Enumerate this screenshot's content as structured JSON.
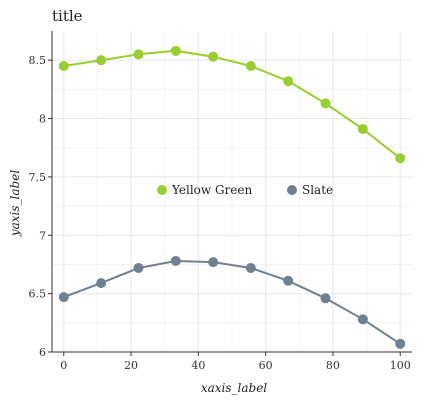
{
  "chart_data": {
    "type": "scatter",
    "title": "title",
    "xlabel": "xaxis_label",
    "ylabel": "yaxis_label",
    "xlim": [
      -3.5,
      103.5
    ],
    "ylim": [
      6.0,
      8.75
    ],
    "x_ticks": [
      0,
      20,
      40,
      60,
      80,
      100
    ],
    "y_ticks": [
      6,
      6.5,
      7,
      7.5,
      8,
      8.5
    ],
    "x_tick_labels": [
      "0",
      "20",
      "40",
      "60",
      "80",
      "100"
    ],
    "y_tick_labels": [
      "6",
      "6.5",
      "7",
      "7.5",
      "8",
      "8.5"
    ],
    "grid": true,
    "legend_position": "center",
    "series": [
      {
        "name": "Yellow Green",
        "color": "#9acd32",
        "x": [
          0,
          11.1,
          22.2,
          33.3,
          44.4,
          55.6,
          66.7,
          77.8,
          88.9,
          100
        ],
        "y": [
          8.45,
          8.5,
          8.55,
          8.58,
          8.53,
          8.45,
          8.32,
          8.13,
          7.91,
          7.66
        ]
      },
      {
        "name": "Slate",
        "color": "#708090",
        "x": [
          0,
          11.1,
          22.2,
          33.3,
          44.4,
          55.6,
          66.7,
          77.8,
          88.9,
          100
        ],
        "y": [
          6.47,
          6.59,
          6.72,
          6.78,
          6.77,
          6.72,
          6.61,
          6.46,
          6.28,
          6.07
        ]
      }
    ]
  }
}
